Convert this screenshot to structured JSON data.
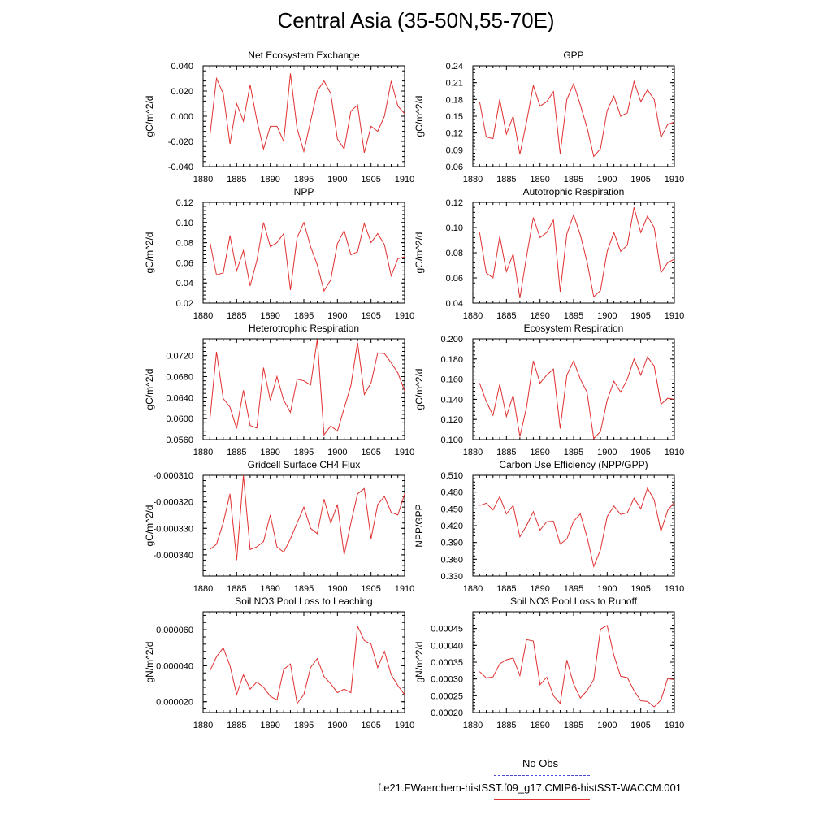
{
  "title": "Central Asia (35-50N,55-70E)",
  "legend": {
    "obs_label": "No Obs",
    "obs_color": "#4a4ad6",
    "model_label": "f.e21.FWaerchem-histSST.f09_g17.CMIP6-histSST-WACCM.001",
    "model_color": "#e03030"
  },
  "chart_data": [
    {
      "type": "line",
      "title": "Net Ecosystem Exchange",
      "ylabel": "gC/m^2/d",
      "xlim": [
        1880,
        1910
      ],
      "xticks": [
        "1880",
        "1885",
        "1890",
        "1895",
        "1900",
        "1905",
        "1910"
      ],
      "ylim": [
        -0.04,
        0.04
      ],
      "yticks": [
        "-0.040",
        "-0.020",
        "0.000",
        "0.020",
        "0.040"
      ],
      "x": [
        1881,
        1882,
        1883,
        1884,
        1885,
        1886,
        1887,
        1888,
        1889,
        1890,
        1891,
        1892,
        1893,
        1894,
        1895,
        1896,
        1897,
        1898,
        1899,
        1900,
        1901,
        1902,
        1903,
        1904,
        1905,
        1906,
        1907,
        1908,
        1909,
        1910
      ],
      "series": [
        {
          "values": [
            -0.016,
            0.03,
            0.018,
            -0.022,
            0.01,
            -0.004,
            0.025,
            -0.003,
            -0.026,
            -0.008,
            -0.008,
            -0.02,
            0.034,
            -0.01,
            -0.028,
            -0.004,
            0.02,
            0.028,
            0.018,
            -0.018,
            -0.026,
            0.004,
            0.009,
            -0.029,
            -0.008,
            -0.012,
            0.0,
            0.028,
            0.008,
            0.002
          ]
        }
      ]
    },
    {
      "type": "line",
      "title": "GPP",
      "ylabel": "gC/m^2/d",
      "xlim": [
        1880,
        1910
      ],
      "xticks": [
        "1880",
        "1885",
        "1890",
        "1895",
        "1900",
        "1905",
        "1910"
      ],
      "ylim": [
        0.06,
        0.24
      ],
      "yticks": [
        "0.06",
        "0.09",
        "0.12",
        "0.15",
        "0.18",
        "0.21",
        "0.24"
      ],
      "x": [
        1881,
        1882,
        1883,
        1884,
        1885,
        1886,
        1887,
        1888,
        1889,
        1890,
        1891,
        1892,
        1893,
        1894,
        1895,
        1896,
        1897,
        1898,
        1899,
        1900,
        1901,
        1902,
        1903,
        1904,
        1905,
        1906,
        1907,
        1908,
        1909,
        1910
      ],
      "series": [
        {
          "values": [
            0.176,
            0.113,
            0.11,
            0.18,
            0.118,
            0.15,
            0.082,
            0.14,
            0.205,
            0.168,
            0.176,
            0.194,
            0.083,
            0.18,
            0.208,
            0.17,
            0.13,
            0.078,
            0.092,
            0.16,
            0.186,
            0.15,
            0.156,
            0.212,
            0.176,
            0.197,
            0.18,
            0.112,
            0.135,
            0.14
          ]
        }
      ]
    },
    {
      "type": "line",
      "title": "NPP",
      "ylabel": "gC/m^2/d",
      "xlim": [
        1880,
        1910
      ],
      "xticks": [
        "1880",
        "1885",
        "1890",
        "1895",
        "1900",
        "1905",
        "1910"
      ],
      "ylim": [
        0.02,
        0.12
      ],
      "yticks": [
        "0.02",
        "0.04",
        "0.06",
        "0.08",
        "0.10",
        "0.12"
      ],
      "x": [
        1881,
        1882,
        1883,
        1884,
        1885,
        1886,
        1887,
        1888,
        1889,
        1890,
        1891,
        1892,
        1893,
        1894,
        1895,
        1896,
        1897,
        1898,
        1899,
        1900,
        1901,
        1902,
        1903,
        1904,
        1905,
        1906,
        1907,
        1908,
        1909,
        1910
      ],
      "series": [
        {
          "values": [
            0.081,
            0.048,
            0.05,
            0.087,
            0.052,
            0.072,
            0.037,
            0.062,
            0.1,
            0.076,
            0.08,
            0.089,
            0.033,
            0.085,
            0.1,
            0.076,
            0.058,
            0.032,
            0.043,
            0.079,
            0.092,
            0.068,
            0.071,
            0.099,
            0.08,
            0.089,
            0.078,
            0.047,
            0.064,
            0.066
          ]
        }
      ]
    },
    {
      "type": "line",
      "title": "Autotrophic Respiration",
      "ylabel": "gC/m^2/d",
      "xlim": [
        1880,
        1910
      ],
      "xticks": [
        "1880",
        "1885",
        "1890",
        "1895",
        "1900",
        "1905",
        "1910"
      ],
      "ylim": [
        0.04,
        0.12
      ],
      "yticks": [
        "0.04",
        "0.06",
        "0.08",
        "0.10",
        "0.12"
      ],
      "x": [
        1881,
        1882,
        1883,
        1884,
        1885,
        1886,
        1887,
        1888,
        1889,
        1890,
        1891,
        1892,
        1893,
        1894,
        1895,
        1896,
        1897,
        1898,
        1899,
        1900,
        1901,
        1902,
        1903,
        1904,
        1905,
        1906,
        1907,
        1908,
        1909,
        1910
      ],
      "series": [
        {
          "values": [
            0.096,
            0.064,
            0.06,
            0.093,
            0.065,
            0.079,
            0.044,
            0.077,
            0.108,
            0.092,
            0.096,
            0.106,
            0.049,
            0.095,
            0.11,
            0.094,
            0.073,
            0.045,
            0.05,
            0.081,
            0.096,
            0.081,
            0.086,
            0.116,
            0.096,
            0.109,
            0.1,
            0.064,
            0.072,
            0.075
          ]
        }
      ]
    },
    {
      "type": "line",
      "title": "Heterotrophic Respiration",
      "ylabel": "gC/m^2/d",
      "xlim": [
        1880,
        1910
      ],
      "xticks": [
        "1880",
        "1885",
        "1890",
        "1895",
        "1900",
        "1905",
        "1910"
      ],
      "ylim": [
        0.056,
        0.0752
      ],
      "yticks": [
        "0.0560",
        "0.0600",
        "0.0640",
        "0.0680",
        "0.0720"
      ],
      "x": [
        1881,
        1882,
        1883,
        1884,
        1885,
        1886,
        1887,
        1888,
        1889,
        1890,
        1891,
        1892,
        1893,
        1894,
        1895,
        1896,
        1897,
        1898,
        1899,
        1900,
        1901,
        1902,
        1903,
        1904,
        1905,
        1906,
        1907,
        1908,
        1909,
        1910
      ],
      "series": [
        {
          "values": [
            0.0597,
            0.0727,
            0.0638,
            0.0622,
            0.0581,
            0.0654,
            0.0587,
            0.0582,
            0.0697,
            0.0635,
            0.068,
            0.0635,
            0.0612,
            0.0675,
            0.0672,
            0.0664,
            0.0751,
            0.0569,
            0.0586,
            0.0576,
            0.062,
            0.0663,
            0.0745,
            0.0646,
            0.0668,
            0.0725,
            0.0724,
            0.0706,
            0.0687,
            0.0653
          ]
        }
      ]
    },
    {
      "type": "line",
      "title": "Ecosystem Respiration",
      "ylabel": "gC/m^2/d",
      "xlim": [
        1880,
        1910
      ],
      "xticks": [
        "1880",
        "1885",
        "1890",
        "1895",
        "1900",
        "1905",
        "1910"
      ],
      "ylim": [
        0.1,
        0.2
      ],
      "yticks": [
        "0.100",
        "0.120",
        "0.140",
        "0.160",
        "0.180",
        "0.200"
      ],
      "x": [
        1881,
        1882,
        1883,
        1884,
        1885,
        1886,
        1887,
        1888,
        1889,
        1890,
        1891,
        1892,
        1893,
        1894,
        1895,
        1896,
        1897,
        1898,
        1899,
        1900,
        1901,
        1902,
        1903,
        1904,
        1905,
        1906,
        1907,
        1908,
        1909,
        1910
      ],
      "series": [
        {
          "values": [
            0.156,
            0.138,
            0.124,
            0.155,
            0.123,
            0.144,
            0.103,
            0.132,
            0.178,
            0.156,
            0.164,
            0.17,
            0.111,
            0.164,
            0.178,
            0.16,
            0.147,
            0.101,
            0.108,
            0.139,
            0.158,
            0.147,
            0.16,
            0.18,
            0.164,
            0.182,
            0.173,
            0.135,
            0.141,
            0.14
          ]
        }
      ]
    },
    {
      "type": "line",
      "title": "Gridcell Surface CH4 Flux",
      "ylabel": "gC/m^2/d",
      "xlim": [
        1880,
        1910
      ],
      "xticks": [
        "1880",
        "1885",
        "1890",
        "1895",
        "1900",
        "1905",
        "1910"
      ],
      "ylim": [
        -0.000348,
        -0.00031
      ],
      "yticks": [
        "-0.000340",
        "-0.000330",
        "-0.000320",
        "-0.000310"
      ],
      "x": [
        1881,
        1882,
        1883,
        1884,
        1885,
        1886,
        1887,
        1888,
        1889,
        1890,
        1891,
        1892,
        1893,
        1894,
        1895,
        1896,
        1897,
        1898,
        1899,
        1900,
        1901,
        1902,
        1903,
        1904,
        1905,
        1906,
        1907,
        1908,
        1909,
        1910
      ],
      "series": [
        {
          "values": [
            -0.000338,
            -0.000336,
            -0.000328,
            -0.000317,
            -0.000342,
            -0.00031,
            -0.000338,
            -0.000337,
            -0.000335,
            -0.000325,
            -0.000337,
            -0.000339,
            -0.000334,
            -0.000328,
            -0.000322,
            -0.00033,
            -0.000332,
            -0.000319,
            -0.000328,
            -0.000321,
            -0.00034,
            -0.000328,
            -0.000317,
            -0.000315,
            -0.000334,
            -0.000321,
            -0.000318,
            -0.000324,
            -0.000325,
            -0.000317
          ]
        }
      ]
    },
    {
      "type": "line",
      "title": "Carbon Use Efficiency (NPP/GPP)",
      "ylabel": "NPP/GPP",
      "xlim": [
        1880,
        1910
      ],
      "xticks": [
        "1880",
        "1885",
        "1890",
        "1895",
        "1900",
        "1905",
        "1910"
      ],
      "ylim": [
        0.33,
        0.51
      ],
      "yticks": [
        "0.330",
        "0.360",
        "0.390",
        "0.420",
        "0.450",
        "0.480",
        "0.510"
      ],
      "x": [
        1881,
        1882,
        1883,
        1884,
        1885,
        1886,
        1887,
        1888,
        1889,
        1890,
        1891,
        1892,
        1893,
        1894,
        1895,
        1896,
        1897,
        1898,
        1899,
        1900,
        1901,
        1902,
        1903,
        1904,
        1905,
        1906,
        1907,
        1908,
        1909,
        1910
      ],
      "series": [
        {
          "values": [
            0.456,
            0.46,
            0.448,
            0.472,
            0.441,
            0.456,
            0.4,
            0.42,
            0.445,
            0.412,
            0.427,
            0.428,
            0.387,
            0.396,
            0.428,
            0.441,
            0.4,
            0.347,
            0.377,
            0.436,
            0.455,
            0.44,
            0.443,
            0.469,
            0.45,
            0.487,
            0.466,
            0.41,
            0.447,
            0.462
          ]
        }
      ]
    },
    {
      "type": "line",
      "title": "Soil NO3 Pool Loss to Leaching",
      "ylabel": "gN/m^2/d",
      "xlim": [
        1880,
        1910
      ],
      "xticks": [
        "1880",
        "1885",
        "1890",
        "1895",
        "1900",
        "1905",
        "1910"
      ],
      "ylim": [
        1.4e-05,
        7e-05
      ],
      "yticks": [
        "0.000020",
        "0.000040",
        "0.000060"
      ],
      "x": [
        1881,
        1882,
        1883,
        1884,
        1885,
        1886,
        1887,
        1888,
        1889,
        1890,
        1891,
        1892,
        1893,
        1894,
        1895,
        1896,
        1897,
        1898,
        1899,
        1900,
        1901,
        1902,
        1903,
        1904,
        1905,
        1906,
        1907,
        1908,
        1909,
        1910
      ],
      "series": [
        {
          "values": [
            3.7e-05,
            4.5e-05,
            5e-05,
            4e-05,
            2.4e-05,
            3.5e-05,
            2.7e-05,
            3.1e-05,
            2.8e-05,
            2.3e-05,
            2.1e-05,
            3.8e-05,
            4.1e-05,
            1.9e-05,
            2.4e-05,
            3.9e-05,
            4.4e-05,
            3.4e-05,
            3e-05,
            2.5e-05,
            2.7e-05,
            2.5e-05,
            6.2e-05,
            5.4e-05,
            5.2e-05,
            3.9e-05,
            4.8e-05,
            3.5e-05,
            2.9e-05,
            2.4e-05
          ]
        }
      ]
    },
    {
      "type": "line",
      "title": "Soil NO3 Pool Loss to Runoff",
      "ylabel": "gN/m^2/d",
      "xlim": [
        1880,
        1910
      ],
      "xticks": [
        "1880",
        "1885",
        "1890",
        "1895",
        "1900",
        "1905",
        "1910"
      ],
      "ylim": [
        0.0002,
        0.0005
      ],
      "yticks": [
        "0.00020",
        "0.00025",
        "0.00030",
        "0.00035",
        "0.00040",
        "0.00045"
      ],
      "x": [
        1881,
        1882,
        1883,
        1884,
        1885,
        1886,
        1887,
        1888,
        1889,
        1890,
        1891,
        1892,
        1893,
        1894,
        1895,
        1896,
        1897,
        1898,
        1899,
        1900,
        1901,
        1902,
        1903,
        1904,
        1905,
        1906,
        1907,
        1908,
        1909,
        1910
      ],
      "series": [
        {
          "values": [
            0.000322,
            0.000303,
            0.000306,
            0.000345,
            0.000357,
            0.000362,
            0.00031,
            0.000417,
            0.000413,
            0.000283,
            0.000305,
            0.00025,
            0.000227,
            0.000356,
            0.000285,
            0.000243,
            0.000265,
            0.000298,
            0.000448,
            0.000459,
            0.00037,
            0.000308,
            0.000304,
            0.000265,
            0.000235,
            0.000233,
            0.000217,
            0.000237,
            0.000301,
            0.000298
          ]
        }
      ]
    }
  ]
}
